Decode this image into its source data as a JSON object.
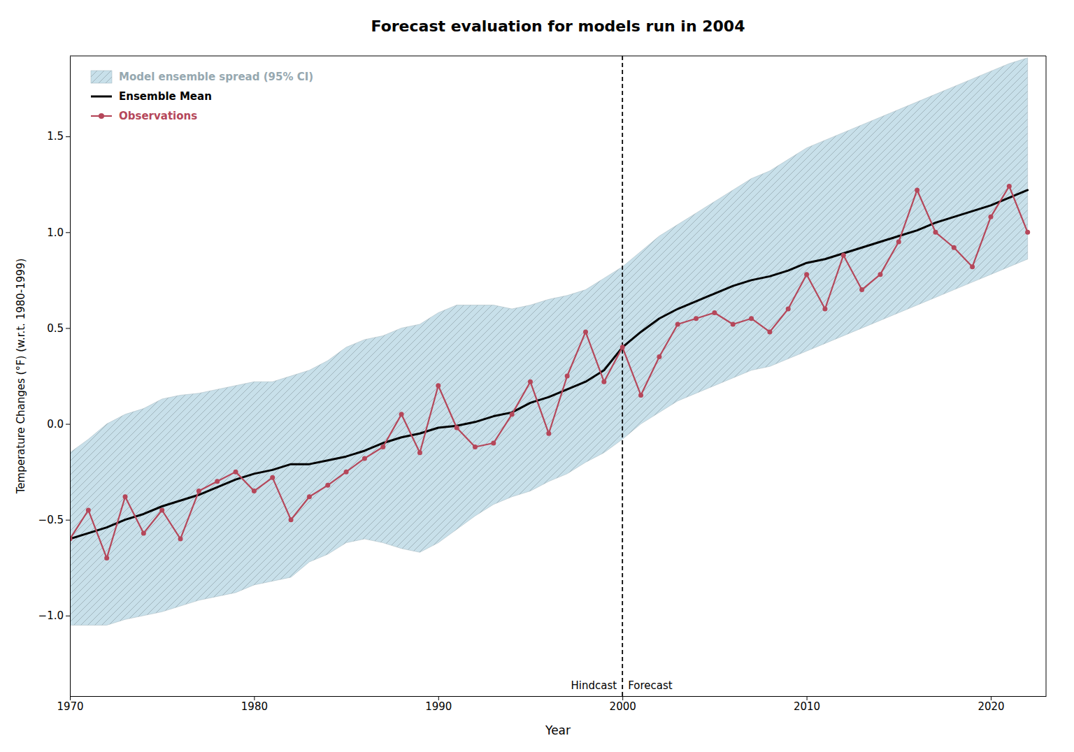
{
  "chart_data": {
    "type": "line",
    "title": "Forecast evaluation for models run in 2004",
    "x_label": "Year",
    "y_label": "Temperature Changes (°F) (w.r.t. 1980-1999)",
    "x": [
      1970,
      1971,
      1972,
      1973,
      1974,
      1975,
      1976,
      1977,
      1978,
      1979,
      1980,
      1981,
      1982,
      1983,
      1984,
      1985,
      1986,
      1987,
      1988,
      1989,
      1990,
      1991,
      1992,
      1993,
      1994,
      1995,
      1996,
      1997,
      1998,
      1999,
      2000,
      2001,
      2002,
      2003,
      2004,
      2005,
      2006,
      2007,
      2008,
      2009,
      2010,
      2011,
      2012,
      2013,
      2014,
      2015,
      2016,
      2017,
      2018,
      2019,
      2020,
      2021,
      2022
    ],
    "series": [
      {
        "name": "Model ensemble spread (95% CI)",
        "type": "area",
        "color": "#c8e0ea",
        "upper": [
          -0.15,
          -0.08,
          0.0,
          0.05,
          0.08,
          0.13,
          0.15,
          0.16,
          0.18,
          0.2,
          0.22,
          0.22,
          0.25,
          0.28,
          0.33,
          0.4,
          0.44,
          0.46,
          0.5,
          0.52,
          0.58,
          0.62,
          0.62,
          0.62,
          0.6,
          0.62,
          0.65,
          0.67,
          0.7,
          0.76,
          0.82,
          0.9,
          0.98,
          1.04,
          1.1,
          1.16,
          1.22,
          1.28,
          1.32,
          1.38,
          1.44,
          1.48,
          1.52,
          1.56,
          1.6,
          1.64,
          1.68,
          1.72,
          1.76,
          1.8,
          1.84,
          1.88,
          1.91
        ],
        "lower": [
          -1.05,
          -1.05,
          -1.05,
          -1.02,
          -1.0,
          -0.98,
          -0.95,
          -0.92,
          -0.9,
          -0.88,
          -0.84,
          -0.82,
          -0.8,
          -0.72,
          -0.68,
          -0.62,
          -0.6,
          -0.62,
          -0.65,
          -0.67,
          -0.62,
          -0.55,
          -0.48,
          -0.42,
          -0.38,
          -0.35,
          -0.3,
          -0.26,
          -0.2,
          -0.15,
          -0.08,
          0.0,
          0.06,
          0.12,
          0.16,
          0.2,
          0.24,
          0.28,
          0.3,
          0.34,
          0.38,
          0.42,
          0.46,
          0.5,
          0.54,
          0.58,
          0.62,
          0.66,
          0.7,
          0.74,
          0.78,
          0.82,
          0.86
        ]
      },
      {
        "name": "Ensemble Mean",
        "type": "line",
        "color": "#000000",
        "values": [
          -0.6,
          -0.57,
          -0.54,
          -0.5,
          -0.47,
          -0.43,
          -0.4,
          -0.37,
          -0.33,
          -0.29,
          -0.26,
          -0.24,
          -0.21,
          -0.21,
          -0.19,
          -0.17,
          -0.14,
          -0.1,
          -0.07,
          -0.05,
          -0.02,
          -0.01,
          0.01,
          0.04,
          0.06,
          0.11,
          0.14,
          0.18,
          0.22,
          0.28,
          0.4,
          0.48,
          0.55,
          0.6,
          0.64,
          0.68,
          0.72,
          0.75,
          0.77,
          0.8,
          0.84,
          0.86,
          0.89,
          0.92,
          0.95,
          0.98,
          1.01,
          1.05,
          1.08,
          1.11,
          1.14,
          1.18,
          1.22
        ]
      },
      {
        "name": "Observations",
        "type": "line",
        "marker": "circle",
        "color": "#b5475a",
        "values": [
          -0.6,
          -0.45,
          -0.7,
          -0.38,
          -0.57,
          -0.45,
          -0.6,
          -0.35,
          -0.3,
          -0.25,
          -0.35,
          -0.28,
          -0.5,
          -0.38,
          -0.32,
          -0.25,
          -0.18,
          -0.12,
          0.05,
          -0.15,
          0.2,
          -0.02,
          -0.12,
          -0.1,
          0.05,
          0.22,
          -0.05,
          0.25,
          0.48,
          0.22,
          0.4,
          0.15,
          0.35,
          0.52,
          0.55,
          0.58,
          0.52,
          0.55,
          0.48,
          0.6,
          0.78,
          0.6,
          0.88,
          0.7,
          0.78,
          0.95,
          1.22,
          1.0,
          0.92,
          0.82,
          1.08,
          1.24,
          1.0
        ]
      }
    ],
    "vlines": [
      {
        "x": 2000,
        "line_style": "dashed",
        "color": "#000000"
      }
    ],
    "annotations": [
      {
        "text": "Hindcast",
        "x": 2000,
        "side": "left"
      },
      {
        "text": "Forecast",
        "x": 2000,
        "side": "right"
      }
    ],
    "xlim": [
      1970,
      2023
    ],
    "xticks": [
      1970,
      1980,
      1990,
      2000,
      2010,
      2020
    ],
    "ylim": [
      -1.42,
      1.92
    ],
    "yticks": [
      {
        "value": -1.0,
        "label": "−1.0"
      },
      {
        "value": -0.5,
        "label": "−0.5"
      },
      {
        "value": 0.0,
        "label": "0.0"
      },
      {
        "value": 0.5,
        "label": "0.5"
      },
      {
        "value": 1.0,
        "label": "1.0"
      },
      {
        "value": 1.5,
        "label": "1.5"
      }
    ],
    "grid": false,
    "legend": "upper left"
  }
}
